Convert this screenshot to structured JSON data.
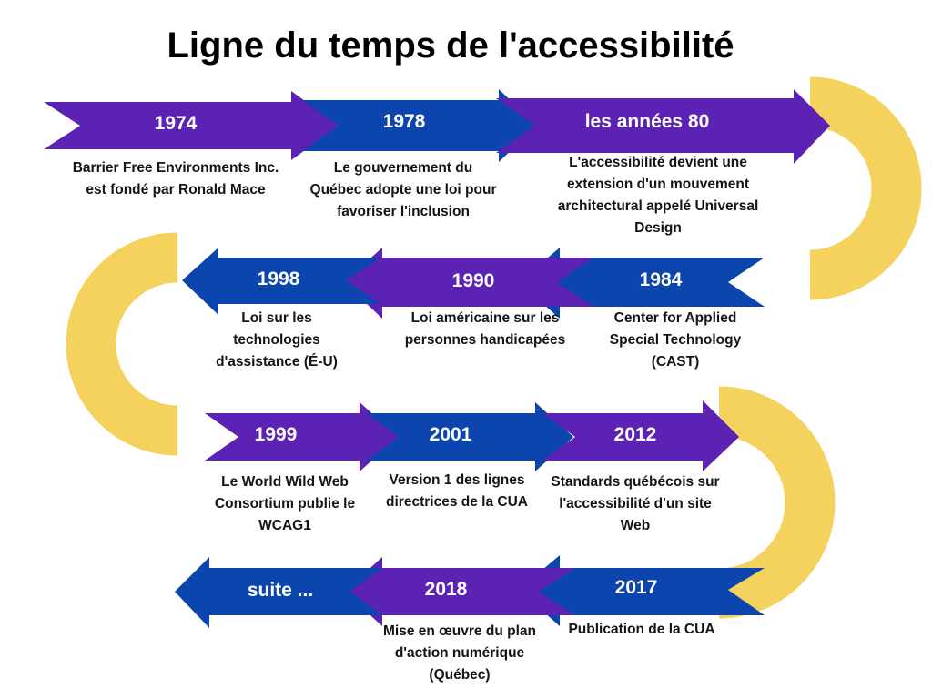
{
  "title": "Ligne du temps de l'accessibilité",
  "colors": {
    "blue": "#0b45ad",
    "purple": "#5b22b4",
    "yellow": "#f5d25e",
    "text": "#141414"
  },
  "events": [
    {
      "year": "1974",
      "description": "Barrier Free Environments Inc. est fondé par Ronald Mace"
    },
    {
      "year": "1978",
      "description": "Le gouvernement du Québec adopte une loi pour favoriser l'inclusion"
    },
    {
      "year": "les années 80",
      "description": "L'accessibilité devient une extension d'un mouvement architectural appelé Universal Design"
    },
    {
      "year": "1984",
      "description": "Center for Applied Special Technology (CAST)"
    },
    {
      "year": "1990",
      "description": "Loi américaine sur les personnes handicapées"
    },
    {
      "year": "1998",
      "description": "Loi sur les technologies d'assistance (É-U)"
    },
    {
      "year": "1999",
      "description": "Le World Wild Web Consortium publie le WCAG1"
    },
    {
      "year": "2001",
      "description": "Version 1 des lignes directrices de la CUA"
    },
    {
      "year": "2012",
      "description": "Standards québécois sur l'accessibilité d'un site Web"
    },
    {
      "year": "2017",
      "description": "Publication de la CUA"
    },
    {
      "year": "2018",
      "description": "Mise en œuvre du plan d'action numérique (Québec)"
    }
  ],
  "continuation": "suite ..."
}
